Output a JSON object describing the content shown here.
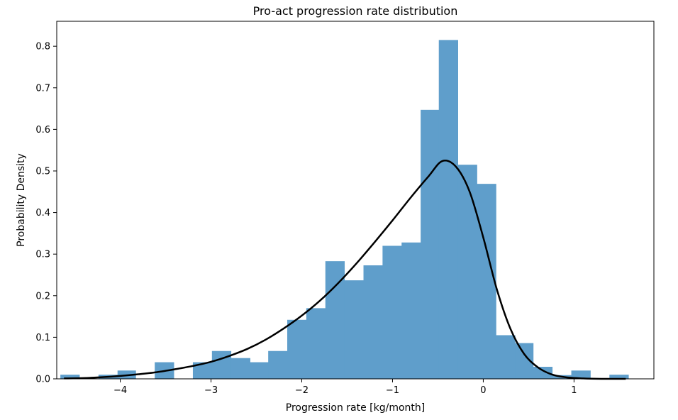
{
  "chart_data": {
    "type": "bar",
    "title": "Pro-act progression rate distribution",
    "xlabel": "Progression rate [kg/month]",
    "ylabel": "Probability Density",
    "xlim": [
      -4.7,
      1.88
    ],
    "ylim": [
      0,
      0.86
    ],
    "xticks": [
      -4,
      -3,
      -2,
      -1,
      0,
      1
    ],
    "xtick_labels": [
      "−4",
      "−3",
      "−2",
      "−1",
      "0",
      "1"
    ],
    "yticks": [
      0.0,
      0.1,
      0.2,
      0.3,
      0.4,
      0.5,
      0.6,
      0.7,
      0.8
    ],
    "ytick_labels": [
      "0.0",
      "0.1",
      "0.2",
      "0.3",
      "0.4",
      "0.5",
      "0.6",
      "0.7",
      "0.8"
    ],
    "grid": false,
    "histogram": {
      "name": "histogram",
      "color": "#5f9ecb",
      "bin_edges": [
        -4.66,
        -4.45,
        -4.24,
        -4.03,
        -3.83,
        -3.62,
        -3.41,
        -3.2,
        -2.99,
        -2.78,
        -2.57,
        -2.37,
        -2.16,
        -1.95,
        -1.74,
        -1.53,
        -1.32,
        -1.11,
        -0.9,
        -0.69,
        -0.49,
        -0.28,
        -0.07,
        0.14,
        0.35,
        0.55,
        0.76,
        0.97,
        1.18,
        1.39,
        1.6
      ],
      "densities": [
        0.01,
        0.0,
        0.01,
        0.02,
        0.0,
        0.04,
        0.0,
        0.04,
        0.067,
        0.05,
        0.04,
        0.067,
        0.142,
        0.17,
        0.283,
        0.237,
        0.273,
        0.32,
        0.328,
        0.647,
        0.815,
        0.515,
        0.469,
        0.105,
        0.086,
        0.029,
        0.009,
        0.02,
        0.0,
        0.01
      ]
    },
    "fit_curve": {
      "name": "fit",
      "color": "#000000",
      "x": [
        -4.62,
        -4.4,
        -4.2,
        -4.0,
        -3.8,
        -3.6,
        -3.4,
        -3.2,
        -3.0,
        -2.8,
        -2.6,
        -2.4,
        -2.2,
        -2.0,
        -1.8,
        -1.6,
        -1.4,
        -1.2,
        -1.0,
        -0.8,
        -0.6,
        -0.45,
        -0.3,
        -0.15,
        0.0,
        0.15,
        0.3,
        0.45,
        0.6,
        0.75,
        0.9,
        1.1,
        1.3,
        1.57
      ],
      "y": [
        0.001,
        0.002,
        0.004,
        0.007,
        0.011,
        0.016,
        0.023,
        0.031,
        0.041,
        0.055,
        0.072,
        0.094,
        0.121,
        0.152,
        0.188,
        0.23,
        0.277,
        0.328,
        0.381,
        0.436,
        0.488,
        0.524,
        0.51,
        0.45,
        0.34,
        0.215,
        0.12,
        0.06,
        0.028,
        0.011,
        0.004,
        0.001,
        0.0,
        0.0
      ]
    }
  }
}
